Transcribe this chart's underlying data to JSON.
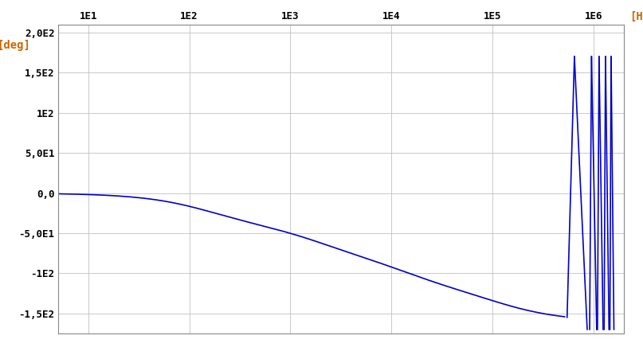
{
  "xlabel": "[Hz]",
  "ylabel": "[deg]",
  "xmin": 5,
  "xmax": 2000000,
  "ymin": -175,
  "ymax": 210,
  "yticks": [
    -150,
    -100,
    -50,
    0,
    50,
    100,
    150,
    200
  ],
  "ytick_labels": [
    "-1,5E2",
    "-1E2",
    "-5,0E1",
    "0,0",
    "5,0E1",
    "1E2",
    "1,5E2",
    "2,0E2"
  ],
  "xtick_positions": [
    10,
    100,
    1000,
    10000,
    100000,
    1000000
  ],
  "xtick_labels": [
    "1E1",
    "1E2",
    "1E3",
    "1E4",
    "1E5",
    "1E6"
  ],
  "line_color": "#0000cc",
  "bg_color": "#ffffff",
  "grid_color": "#c0c0c0",
  "axis_label_color": "#cc6600",
  "tick_label_color": "#000000",
  "smooth_phase_poles": [
    150,
    2000,
    15000,
    120000
  ],
  "smooth_phase_scale": 0.945,
  "osc1_start": 550000,
  "osc1_peak": 650000,
  "osc1_end": 870000,
  "osc2_start": 920000,
  "osc2_peak": 960000,
  "osc2_end": 1080000,
  "osc3_start": 1100000,
  "osc3_peak": 1140000,
  "osc3_end": 1250000,
  "osc4_start": 1280000,
  "osc4_peak": 1320000,
  "osc4_end": 1430000,
  "osc5_start": 1460000,
  "osc5_peak": 1500000,
  "osc5_end": 1600000
}
